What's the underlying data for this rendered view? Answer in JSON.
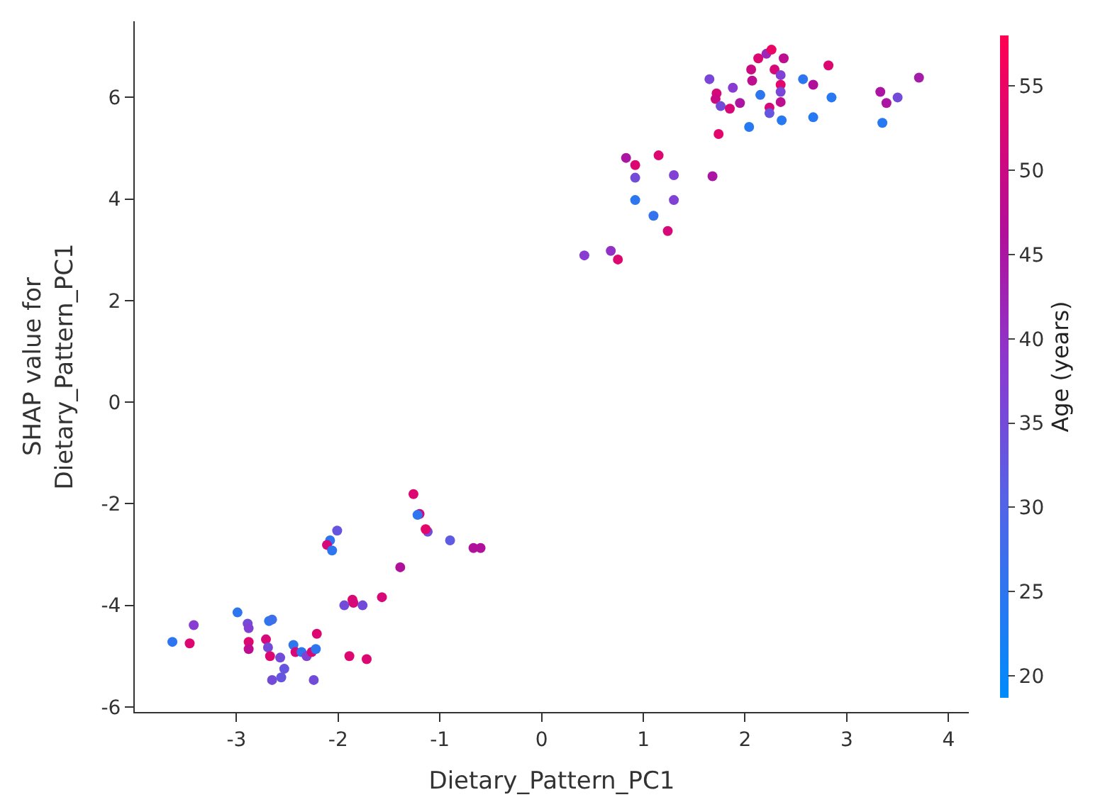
{
  "chart_data": {
    "type": "scatter",
    "xlabel": "Dietary_Pattern_PC1",
    "ylabel": "SHAP value for\nDietary_Pattern_PC1",
    "clabel": "Age (years)",
    "xlim": [
      -4,
      4.2
    ],
    "xticks": [
      -3,
      -2,
      -1,
      0,
      1,
      2,
      3,
      4
    ],
    "ylim": [
      -6.1,
      7.5
    ],
    "yticks": [
      -6,
      -4,
      -2,
      0,
      2,
      4,
      6
    ],
    "clim": [
      18.7,
      58
    ],
    "cticks": [
      20,
      25,
      30,
      35,
      40,
      45,
      50,
      55
    ],
    "marker": "circle",
    "series": [
      {
        "x": [
          1.65,
          1.88,
          1.72,
          1.71,
          1.76,
          1.85,
          1.95,
          2.06,
          2.07,
          2.13,
          2.21,
          2.26,
          2.38,
          2.29,
          2.35,
          2.35,
          2.35,
          2.35,
          2.15,
          2.24,
          2.24,
          2.04,
          2.36,
          2.57,
          2.67,
          2.82,
          2.85,
          2.67,
          3.33,
          3.39,
          3.5,
          3.35,
          3.71,
          1.74,
          0.83,
          0.92,
          1.15,
          0.92,
          1.3,
          0.92,
          1.3,
          1.1,
          1.24,
          1.68,
          0.42,
          0.68,
          0.75,
          -1.26,
          -1.2,
          -1.22,
          -1.12,
          -1.14,
          -0.9,
          -0.67,
          -0.6,
          -2.01,
          -2.08,
          -2.11,
          -2.06,
          -1.39,
          -1.57,
          -1.86,
          -1.94,
          -1.85,
          -1.76,
          -1.89,
          -1.72,
          -3.63,
          -3.46,
          -3.42,
          -2.99,
          -2.89,
          -2.88,
          -2.88,
          -2.88,
          -2.71,
          -2.68,
          -2.65,
          -2.69,
          -2.67,
          -2.57,
          -2.53,
          -2.56,
          -2.65,
          -2.44,
          -2.42,
          -2.36,
          -2.31,
          -2.26,
          -2.22,
          -2.21,
          -2.24
        ],
        "values": [
          6.36,
          6.19,
          6.08,
          5.97,
          5.83,
          5.78,
          5.89,
          6.55,
          6.33,
          6.77,
          6.86,
          6.94,
          6.77,
          6.55,
          6.44,
          6.25,
          6.11,
          5.91,
          6.05,
          5.8,
          5.69,
          5.42,
          5.55,
          6.36,
          6.25,
          6.63,
          6.0,
          5.61,
          6.11,
          5.89,
          6.0,
          5.5,
          6.39,
          5.28,
          4.81,
          4.67,
          4.86,
          4.42,
          4.47,
          3.98,
          3.98,
          3.67,
          3.37,
          4.45,
          2.89,
          2.98,
          2.81,
          -1.81,
          -2.2,
          -2.22,
          -2.55,
          -2.5,
          -2.72,
          -2.87,
          -2.87,
          -2.53,
          -2.72,
          -2.81,
          -2.92,
          -3.25,
          -3.84,
          -3.89,
          -4.0,
          -3.95,
          -4.0,
          -5.0,
          -5.06,
          -4.72,
          -4.75,
          -4.39,
          -4.14,
          -4.36,
          -4.45,
          -4.72,
          -4.86,
          -4.67,
          -4.31,
          -4.28,
          -4.83,
          -5.0,
          -5.03,
          -5.25,
          -5.42,
          -5.47,
          -4.78,
          -4.92,
          -4.92,
          -5.0,
          -4.92,
          -4.86,
          -4.56,
          -5.47
        ],
        "cvalues": [
          36,
          38,
          52,
          50,
          35,
          52,
          45,
          50,
          48,
          53,
          42,
          55,
          48,
          52,
          37,
          54,
          36,
          48,
          25,
          52,
          33,
          24,
          24,
          25,
          46,
          53,
          24,
          24,
          45,
          45,
          35,
          24,
          44,
          54,
          45,
          53,
          53,
          35,
          37,
          25,
          37,
          26,
          52,
          45,
          38,
          40,
          53,
          53,
          51,
          25,
          35,
          54,
          32,
          46,
          46,
          33,
          25,
          52,
          25,
          46,
          52,
          53,
          35,
          52,
          35,
          53,
          53,
          25,
          53,
          38,
          25,
          35,
          37,
          53,
          48,
          52,
          25,
          27,
          35,
          53,
          35,
          33,
          33,
          35,
          25,
          52,
          25,
          37,
          52,
          25,
          53,
          35
        ]
      }
    ]
  }
}
